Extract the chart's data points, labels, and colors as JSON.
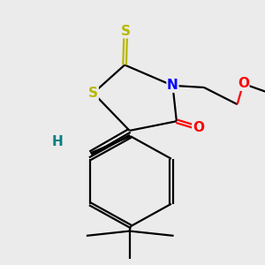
{
  "background_color": "#ebebeb",
  "atom_colors": {
    "S": "#b8b800",
    "N": "#0000ff",
    "O": "#ff0000",
    "H": "#008080",
    "C": "#000000"
  },
  "font_size_atom": 11,
  "line_width": 1.6,
  "fig_width": 3.0,
  "fig_height": 3.0,
  "dpi": 100
}
